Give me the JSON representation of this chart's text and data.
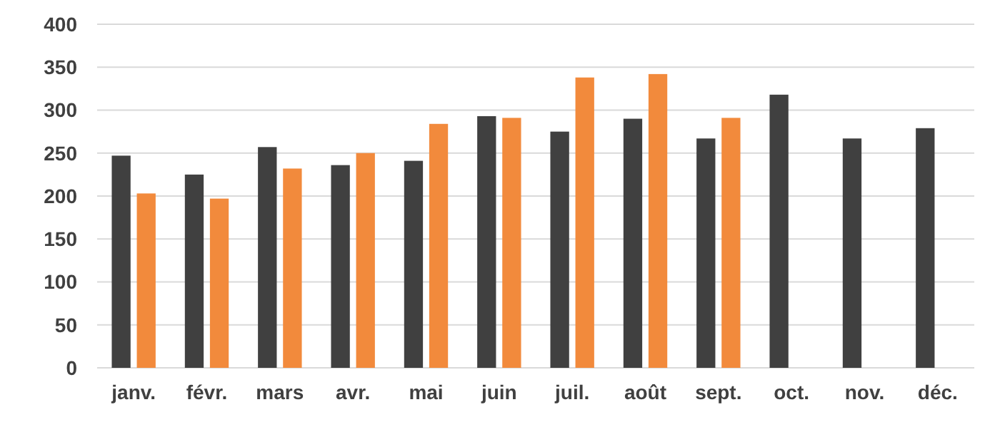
{
  "chart_data": {
    "type": "bar",
    "categories": [
      "janv.",
      "févr.",
      "mars",
      "avr.",
      "mai",
      "juin",
      "juil.",
      "août",
      "sept.",
      "oct.",
      "nov.",
      "déc."
    ],
    "series": [
      {
        "color": "#404040",
        "values": [
          247,
          225,
          257,
          236,
          241,
          293,
          275,
          290,
          267,
          318,
          267,
          279
        ]
      },
      {
        "color": "#f28a3c",
        "values": [
          203,
          197,
          232,
          250,
          284,
          291,
          338,
          342,
          291,
          null,
          null,
          null
        ]
      }
    ],
    "ylim": [
      0,
      400
    ],
    "yticks": [
      0,
      50,
      100,
      150,
      200,
      250,
      300,
      350,
      400
    ],
    "grid": "y"
  }
}
